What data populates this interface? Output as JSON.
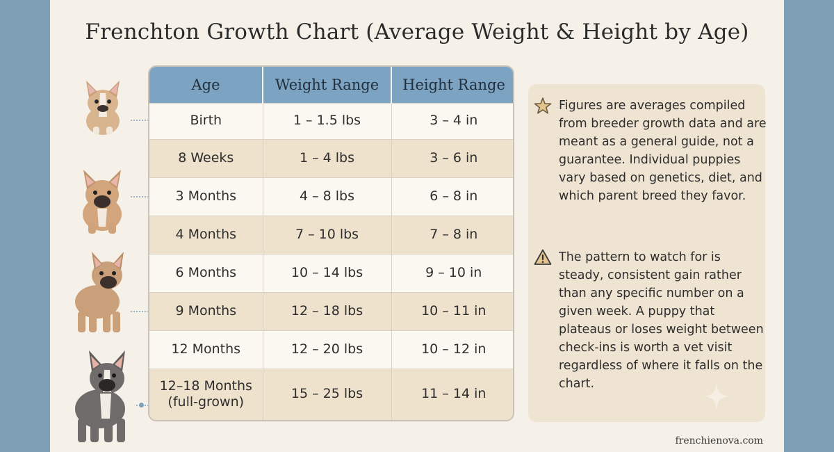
{
  "title": "Frenchton Growth Chart (Average Weight & Height by Age)",
  "table": {
    "headers": [
      "Age",
      "Weight Range",
      "Height Range"
    ],
    "rows": [
      {
        "age": "Birth",
        "age_sub": "",
        "weight": "1 – 1.5 lbs",
        "height": "3 – 4 in"
      },
      {
        "age": "8 Weeks",
        "age_sub": "",
        "weight": "1 – 4 lbs",
        "height": "3 – 6 in"
      },
      {
        "age": "3 Months",
        "age_sub": "",
        "weight": "4 – 8 lbs",
        "height": "6 – 8 in"
      },
      {
        "age": "4 Months",
        "age_sub": "",
        "weight": "7 – 10 lbs",
        "height": "7 – 8 in"
      },
      {
        "age": "6 Months",
        "age_sub": "",
        "weight": "10 – 14 lbs",
        "height": "9 – 10 in"
      },
      {
        "age": "9 Months",
        "age_sub": "",
        "weight": "12 – 18 lbs",
        "height": "10 – 11 in"
      },
      {
        "age": "12 Months",
        "age_sub": "",
        "weight": "12 – 20 lbs",
        "height": "10 – 12 in"
      },
      {
        "age": "12–18 Months",
        "age_sub": "(full-grown)",
        "weight": "15 – 25 lbs",
        "height": "11 – 14 in"
      }
    ]
  },
  "notes": [
    {
      "icon": "star-icon",
      "text": "Figures are averages compiled from breeder growth data and are meant as a general guide, not a guarantee. Individual puppies vary based on genetics, diet, and which parent breed they favor."
    },
    {
      "icon": "warning-icon",
      "text": "The pattern to watch for is steady, consistent gain rather than any specific number on a given week. A puppy that plateaus or loses weight between check-ins is worth a vet visit regardless of where it falls on the chart."
    }
  ],
  "footer": {
    "site": "frenchienova.com"
  },
  "colors": {
    "background": "#7f9fb6",
    "card": "#f6f1e8",
    "header": "#7da3c3",
    "row_alt": "#efe2cc",
    "notes_panel": "#efe4d2"
  }
}
